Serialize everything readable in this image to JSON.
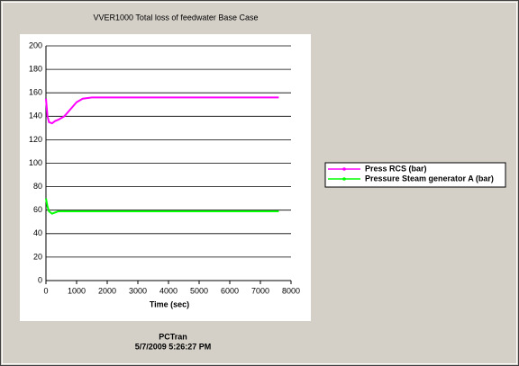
{
  "chart_data": {
    "type": "line",
    "title": "VVER1000 Total loss of feedwater Base Case",
    "x_label": "Time (sec)",
    "footer": [
      "PCTran",
      "5/7/2009 5:26:27 PM"
    ],
    "x": [
      0,
      50,
      100,
      200,
      300,
      400,
      600,
      800,
      1000,
      1200,
      1500,
      2000,
      3000,
      4000,
      5000,
      6000,
      7000,
      7600
    ],
    "series": [
      {
        "name": "Press RCS (bar)",
        "color": "#ff00ff",
        "values": [
          155,
          140,
          135,
          134,
          136,
          137,
          140,
          146,
          152,
          155,
          156,
          156,
          156,
          156,
          156,
          156,
          156,
          156
        ]
      },
      {
        "name": "Pressure Steam generator A (bar)",
        "color": "#00ff00",
        "values": [
          70,
          63,
          59,
          57,
          58,
          59,
          59,
          59,
          59,
          59,
          59,
          59,
          59,
          59,
          59,
          59,
          59,
          59
        ]
      }
    ],
    "xlim": [
      0,
      8000
    ],
    "xticks": [
      0,
      1000,
      2000,
      3000,
      4000,
      5000,
      6000,
      7000,
      8000
    ],
    "ylim": [
      0,
      200
    ],
    "yticks": [
      0,
      20,
      40,
      60,
      80,
      100,
      120,
      140,
      160,
      180,
      200
    ],
    "grid": true
  }
}
